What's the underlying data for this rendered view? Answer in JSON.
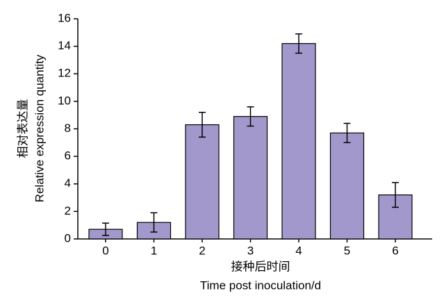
{
  "chart_data": {
    "type": "bar",
    "x_label": [
      "接种后时间",
      "Time post inoculation/d"
    ],
    "y_label": [
      "相对表达量",
      "Relative expression quantity"
    ],
    "categories": [
      "0",
      "1",
      "2",
      "3",
      "4",
      "5",
      "6"
    ],
    "values": [
      0.7,
      1.2,
      8.3,
      8.9,
      14.2,
      7.7,
      3.2
    ],
    "errors": [
      0.45,
      0.7,
      0.9,
      0.7,
      0.7,
      0.7,
      0.9
    ],
    "color": "#a398cc",
    "ylim": [
      0,
      16
    ],
    "yticks": [
      0,
      2,
      4,
      6,
      8,
      10,
      12,
      14,
      16
    ]
  }
}
